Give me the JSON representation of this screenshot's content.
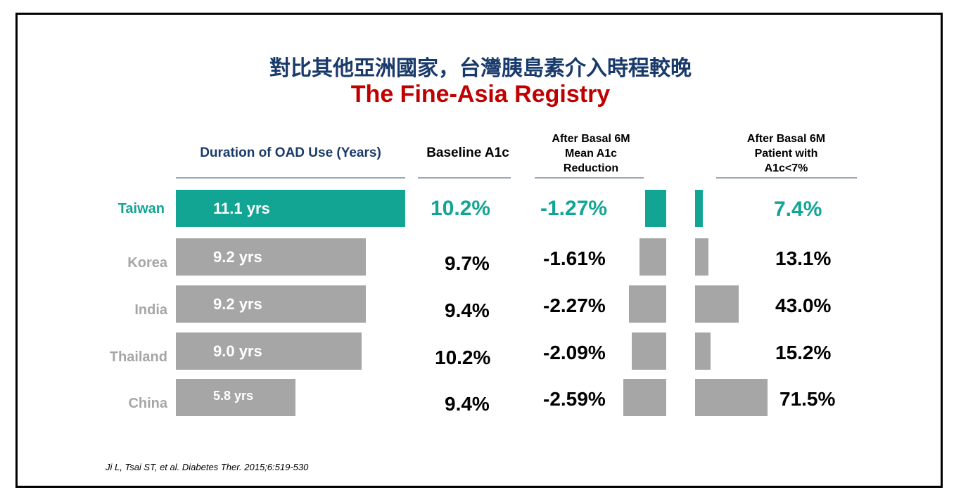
{
  "title_cn": "對比其他亞洲國家，台灣胰島素介入時程較晚",
  "title_en": "The Fine-Asia Registry",
  "headers": {
    "duration": "Duration of OAD Use (Years)",
    "baseline": "Baseline A1c",
    "reduction_1": "After Basal 6M",
    "reduction_2": "Mean A1c",
    "reduction_3": "Reduction",
    "patient_1": "After Basal 6M",
    "patient_2": "Patient with",
    "patient_3": "A1c<7%"
  },
  "citation": "Ji L, Tsai ST, et al. Diabetes Ther. 2015;6:519-530",
  "colors": {
    "highlight": "#12a594",
    "bar": "#a6a6a6",
    "title_cn": "#1a3a6b",
    "title_en": "#c00000"
  },
  "chart_data": {
    "type": "table",
    "highlight": "Taiwan",
    "rows": [
      {
        "country": "Taiwan",
        "duration": 11.1,
        "duration_label": "11.1 yrs",
        "baseline": "10.2%",
        "reduction": -1.27,
        "reduction_label": "-1.27%",
        "patient_pct": 7.4,
        "patient_label": "7.4%"
      },
      {
        "country": "Korea",
        "duration": 9.2,
        "duration_label": "9.2 yrs",
        "baseline": "9.7%",
        "reduction": -1.61,
        "reduction_label": "-1.61%",
        "patient_pct": 13.1,
        "patient_label": "13.1%"
      },
      {
        "country": "India",
        "duration": 9.2,
        "duration_label": "9.2 yrs",
        "baseline": "9.4%",
        "reduction": -2.27,
        "reduction_label": "-2.27%",
        "patient_pct": 43.0,
        "patient_label": "43.0%"
      },
      {
        "country": "Thailand",
        "duration": 9.0,
        "duration_label": "9.0 yrs",
        "baseline": "10.2%",
        "reduction": -2.09,
        "reduction_label": "-2.09%",
        "patient_pct": 15.2,
        "patient_label": "15.2%"
      },
      {
        "country": "China",
        "duration": 5.8,
        "duration_label": "5.8 yrs",
        "baseline": "9.4%",
        "reduction": -2.59,
        "reduction_label": "-2.59%",
        "patient_pct": 71.5,
        "patient_label": "71.5%"
      }
    ]
  }
}
